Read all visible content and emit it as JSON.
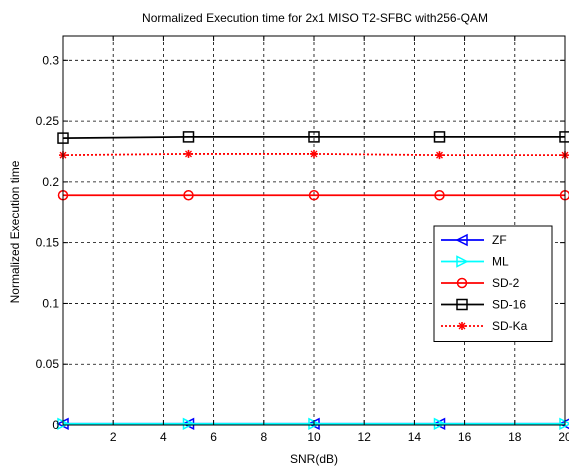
{
  "chart_data": {
    "type": "line",
    "title": "Normalized Execution time for 2x1 MISO T2-SFBC with256-QAM",
    "xlabel": "SNR(dB)",
    "ylabel": "Normalized Execution time",
    "xlim": [
      0,
      20
    ],
    "ylim": [
      0,
      0.32
    ],
    "xticks": [
      2,
      4,
      6,
      8,
      10,
      12,
      14,
      16,
      18,
      20
    ],
    "xtick_labels": [
      "2",
      "4",
      "6",
      "8",
      "10",
      "12",
      "14",
      "16",
      "18",
      "20"
    ],
    "yticks": [
      0,
      0.05,
      0.1,
      0.15,
      0.2,
      0.25,
      0.3
    ],
    "ytick_labels": [
      "0",
      "0.05",
      "0.1",
      "0.15",
      "0.2",
      "0.25",
      "0.3"
    ],
    "grid": true,
    "legend_position": "right-middle",
    "x": [
      0,
      5,
      10,
      15,
      20
    ],
    "series": [
      {
        "name": "ZF",
        "values": [
          0.001,
          0.001,
          0.001,
          0.001,
          0.001
        ],
        "color": "#0000ff",
        "marker": "triangle-left",
        "dash": "solid"
      },
      {
        "name": "ML",
        "values": [
          0.001,
          0.001,
          0.001,
          0.001,
          0.001
        ],
        "color": "#00ffff",
        "marker": "triangle-right",
        "dash": "solid"
      },
      {
        "name": "SD-2",
        "values": [
          0.189,
          0.189,
          0.189,
          0.189,
          0.189
        ],
        "color": "#ff0000",
        "marker": "circle",
        "dash": "solid"
      },
      {
        "name": "SD-16",
        "values": [
          0.236,
          0.237,
          0.237,
          0.237,
          0.237
        ],
        "color": "#000000",
        "marker": "square",
        "dash": "solid"
      },
      {
        "name": "SD-Ka",
        "values": [
          0.222,
          0.223,
          0.223,
          0.222,
          0.222
        ],
        "color": "#ff0000",
        "marker": "star",
        "dash": "dotted"
      }
    ]
  }
}
